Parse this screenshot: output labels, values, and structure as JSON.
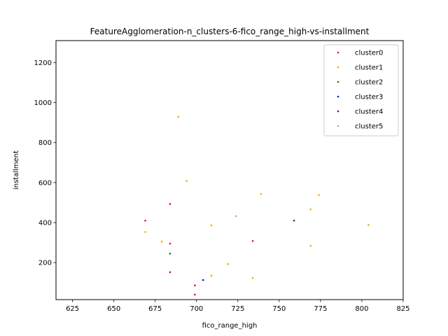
{
  "chart_data": {
    "type": "scatter",
    "title": "FeatureAgglomeration-n_clusters-6-fico_range_high-vs-installment",
    "xlabel": "fico_range_high",
    "ylabel": "installment",
    "xlim": [
      615,
      825
    ],
    "ylim": [
      15,
      1310
    ],
    "xticks": [
      625,
      650,
      675,
      700,
      725,
      750,
      775,
      800,
      825
    ],
    "yticks": [
      200,
      400,
      600,
      800,
      1000,
      1200
    ],
    "grid": false,
    "legend_position": "top-right",
    "series": [
      {
        "name": "cluster0",
        "color": "#ff0000",
        "points": [
          [
            669,
            410
          ],
          [
            684,
            493
          ],
          [
            684,
            295
          ],
          [
            684,
            152
          ],
          [
            699,
            86
          ],
          [
            699,
            40
          ],
          [
            734,
            308
          ]
        ]
      },
      {
        "name": "cluster1",
        "color": "#ffa500",
        "points": [
          [
            689,
            929
          ],
          [
            694,
            608
          ],
          [
            739,
            543
          ],
          [
            774,
            538
          ],
          [
            769,
            466
          ],
          [
            804,
            388
          ],
          [
            669,
            353
          ],
          [
            679,
            305
          ],
          [
            709,
            386
          ],
          [
            769,
            284
          ],
          [
            719,
            193
          ],
          [
            709,
            135
          ],
          [
            734,
            123
          ]
        ]
      },
      {
        "name": "cluster2",
        "color": "#008000",
        "points": [
          [
            684,
            245
          ]
        ]
      },
      {
        "name": "cluster3",
        "color": "#0000ff",
        "points": [
          [
            704,
            113
          ]
        ]
      },
      {
        "name": "cluster4",
        "color": "#800080",
        "points": [
          [
            759,
            410
          ]
        ]
      },
      {
        "name": "cluster5",
        "color": "#ee82ee",
        "points": [
          [
            724,
            432
          ]
        ]
      }
    ]
  }
}
